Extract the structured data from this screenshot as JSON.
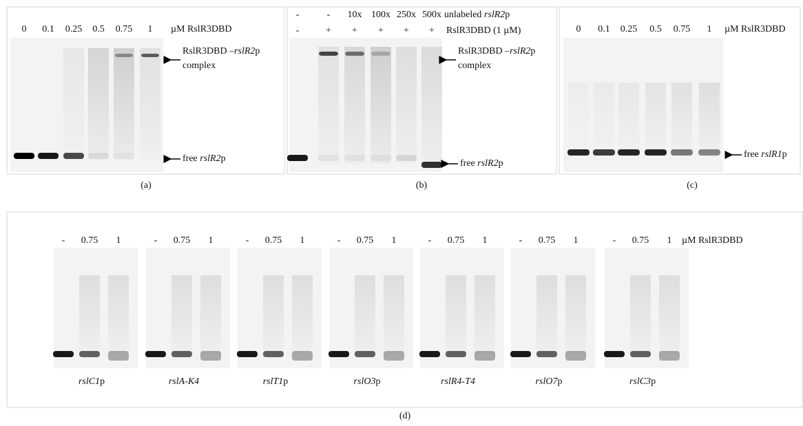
{
  "panels": {
    "a": {
      "caption": "(a)",
      "lanes": [
        "0",
        "0.1",
        "0.25",
        "0.5",
        "0.75",
        "1"
      ],
      "unit": "µM RslR3DBD",
      "complex": [
        [
          {
            "text": "RslR3DBD –"
          },
          {
            "text": "rslR2",
            "italic": true
          },
          {
            "text": "p"
          }
        ],
        [
          {
            "text": "complex"
          }
        ]
      ],
      "free": [
        {
          "text": "free "
        },
        {
          "text": "rslR2",
          "italic": true
        },
        {
          "text": "p"
        }
      ]
    },
    "b": {
      "caption": "(b)",
      "competitor": [
        "-",
        "-",
        "10x",
        "100x",
        "250x",
        "500x"
      ],
      "competitor_label": [
        {
          "text": "unlabeled "
        },
        {
          "text": "rslR2",
          "italic": true
        },
        {
          "text": "p"
        }
      ],
      "protein": [
        "-",
        "+",
        "+",
        "+",
        "+",
        "+"
      ],
      "protein_label": "RslR3DBD (1 µM)",
      "complex": [
        [
          {
            "text": "RslR3DBD –"
          },
          {
            "text": "rslR2",
            "italic": true
          },
          {
            "text": "p"
          }
        ],
        [
          {
            "text": "complex"
          }
        ]
      ],
      "free": [
        {
          "text": "free "
        },
        {
          "text": "rslR2",
          "italic": true
        },
        {
          "text": "p"
        }
      ]
    },
    "c": {
      "caption": "(c)",
      "lanes": [
        "0",
        "0.1",
        "0.25",
        "0.5",
        "0.75",
        "1"
      ],
      "unit": "µM RslR3DBD",
      "free": [
        {
          "text": "free "
        },
        {
          "text": "rslR1",
          "italic": true
        },
        {
          "text": "p"
        }
      ]
    },
    "d": {
      "caption": "(d)",
      "unit": "µM RslR3DBD",
      "gels": [
        {
          "lanes": [
            "-",
            "0.75",
            "1"
          ],
          "name": [
            {
              "text": "rslC1",
              "italic": true
            },
            {
              "text": "p"
            }
          ]
        },
        {
          "lanes": [
            "-",
            "0.75",
            "1"
          ],
          "name": [
            {
              "text": "rslA-K4",
              "italic": true
            }
          ]
        },
        {
          "lanes": [
            "-",
            "0.75",
            "1"
          ],
          "name": [
            {
              "text": "rslT1",
              "italic": true
            },
            {
              "text": "p"
            }
          ]
        },
        {
          "lanes": [
            "-",
            "0.75",
            "1"
          ],
          "name": [
            {
              "text": "rslO3",
              "italic": true
            },
            {
              "text": "p"
            }
          ]
        },
        {
          "lanes": [
            "-",
            "0.75",
            "1"
          ],
          "name": [
            {
              "text": "rslR4-T4",
              "italic": true
            }
          ]
        },
        {
          "lanes": [
            "-",
            "0.75",
            "1"
          ],
          "name": [
            {
              "text": "rslO7",
              "italic": true
            },
            {
              "text": "p"
            }
          ]
        },
        {
          "lanes": [
            "-",
            "0.75",
            "1"
          ],
          "name": [
            {
              "text": "rslC3",
              "italic": true
            },
            {
              "text": "p"
            }
          ]
        }
      ]
    }
  }
}
